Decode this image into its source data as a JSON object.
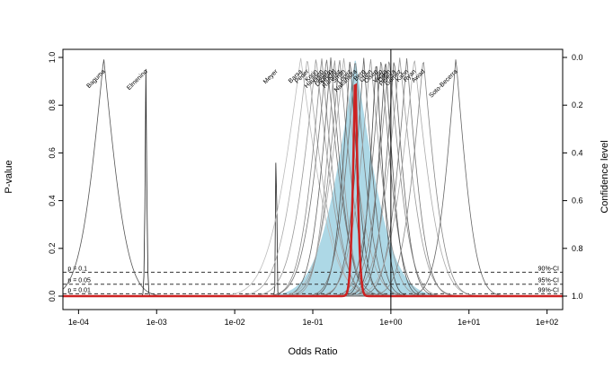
{
  "chart_data": {
    "type": "line",
    "title": "",
    "xlabel": "Odds Ratio",
    "ylabel": "P-value",
    "y2label": "Confidence level",
    "xscale": "log",
    "xlim": [
      0.0001,
      100
    ],
    "ylim": [
      0,
      1
    ],
    "x_ticks": [
      "1e-04",
      "1e-03",
      "1e-02",
      "1e-01",
      "1e+00",
      "1e+01",
      "1e+02"
    ],
    "x_tick_values": [
      0.0001,
      0.001,
      0.01,
      0.1,
      1,
      10,
      100
    ],
    "y_ticks": [
      "0.0",
      "0.2",
      "0.4",
      "0.6",
      "0.8",
      "1.0"
    ],
    "y_tick_values": [
      0,
      0.2,
      0.4,
      0.6,
      0.8,
      1.0
    ],
    "y2_ticks": [
      "1.0",
      "0.8",
      "0.6",
      "0.4",
      "0.2",
      "0.0"
    ],
    "reference_lines": [
      {
        "p": 0.1,
        "left_label": "p = 0.1",
        "right_label": "90%-CI"
      },
      {
        "p": 0.05,
        "left_label": "p = 0.05",
        "right_label": "95%-CI"
      },
      {
        "p": 0.01,
        "left_label": "p = 0.01",
        "right_label": "99%-CI"
      }
    ],
    "null_value": 1,
    "studies": [
      {
        "name": "Baguma",
        "or": 0.00021,
        "sd": 0.55,
        "color": "#555555"
      },
      {
        "name": "Elmenino",
        "or": 0.00073,
        "sd": 0.035,
        "color": "#222222"
      },
      {
        "name": "Meyer",
        "or": 0.034,
        "sd": 0.02,
        "color": "#222222"
      },
      {
        "name": "Barsa",
        "or": 0.07,
        "sd": 0.75,
        "color": "#bbbbbb"
      },
      {
        "name": "Peder",
        "or": 0.085,
        "sd": 0.65,
        "color": "#aaaaaa"
      },
      {
        "name": "Korin",
        "or": 0.11,
        "sd": 0.6,
        "color": "#999999"
      },
      {
        "name": "Haulden",
        "or": 0.13,
        "sd": 0.5,
        "color": "#888888"
      },
      {
        "name": "Martin",
        "or": 0.15,
        "sd": 0.55,
        "color": "#777777"
      },
      {
        "name": "Lantern",
        "or": 0.17,
        "sd": 0.45,
        "color": "#666666"
      },
      {
        "name": "Hochtl",
        "or": 0.19,
        "sd": 0.4,
        "color": "#999999"
      },
      {
        "name": "Ramirez",
        "or": 0.22,
        "sd": 0.5,
        "color": "#888888"
      },
      {
        "name": "Smith",
        "or": 0.25,
        "sd": 0.6,
        "color": "#aaaaaa"
      },
      {
        "name": "Lopez",
        "or": 0.3,
        "sd": 0.35,
        "color": "#555555"
      },
      {
        "name": "Nakamura",
        "or": 0.35,
        "sd": 0.45,
        "color": "#777777"
      },
      {
        "name": "Berg",
        "or": 0.45,
        "sd": 0.4,
        "color": "#666666"
      },
      {
        "name": "Chen",
        "or": 0.55,
        "sd": 0.5,
        "color": "#999999"
      },
      {
        "name": "Olsen",
        "or": 0.65,
        "sd": 0.3,
        "color": "#444444"
      },
      {
        "name": "Ito",
        "or": 0.75,
        "sd": 0.45,
        "color": "#777777"
      },
      {
        "name": "Varga",
        "or": 0.85,
        "sd": 0.35,
        "color": "#555555"
      },
      {
        "name": "Dunn",
        "or": 0.95,
        "sd": 0.5,
        "color": "#888888"
      },
      {
        "name": "Pereira",
        "or": 1.1,
        "sd": 0.4,
        "color": "#666666"
      },
      {
        "name": "Gomez",
        "or": 1.3,
        "sd": 0.55,
        "color": "#999999"
      },
      {
        "name": "Kahn",
        "or": 1.6,
        "sd": 0.45,
        "color": "#777777"
      },
      {
        "name": "Ryan",
        "or": 2.0,
        "sd": 0.6,
        "color": "#aaaaaa"
      },
      {
        "name": "Awad",
        "or": 2.6,
        "sd": 0.5,
        "color": "#888888"
      },
      {
        "name": "Soto-Becerra",
        "or": 6.8,
        "sd": 0.45,
        "color": "#666666"
      }
    ],
    "pooled": {
      "or": 0.35,
      "sd": 0.1,
      "color": "#cc2222"
    },
    "prediction_band": {
      "center": 0.35,
      "sd": 0.85,
      "color": "#add8e6"
    }
  }
}
